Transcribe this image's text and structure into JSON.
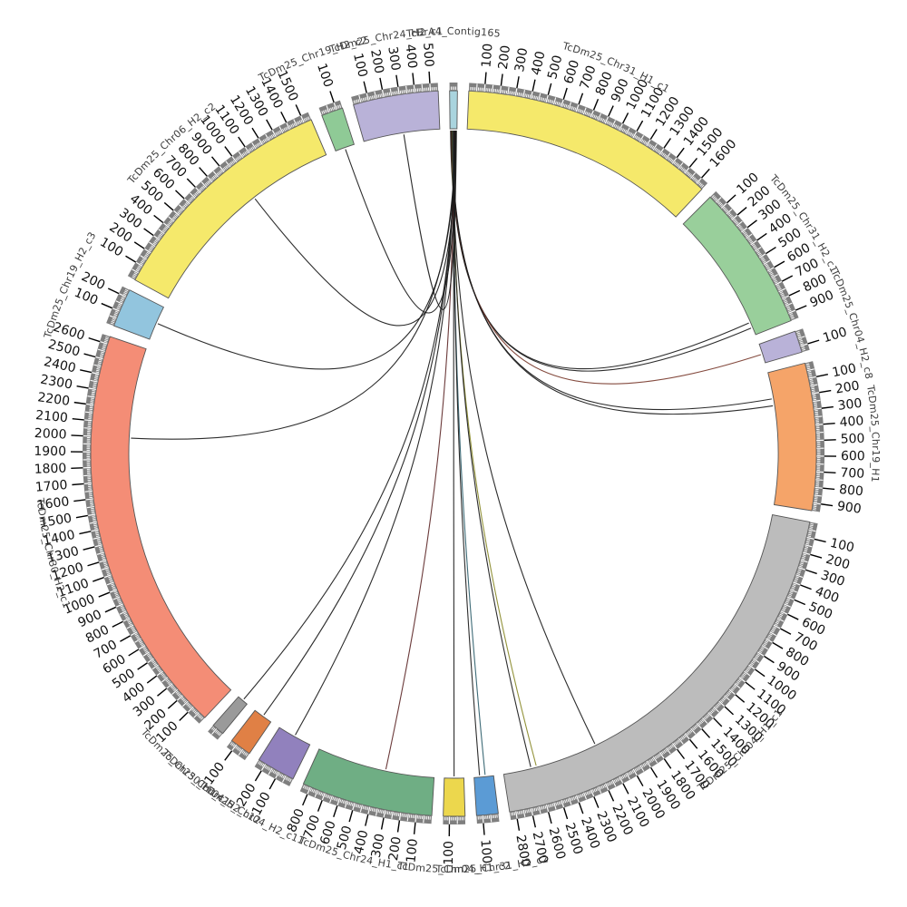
{
  "figure": {
    "kind": "circos-synteny-plot",
    "background": "#ffffff"
  },
  "chart_data": {
    "type": "circos",
    "source_segment": "TcBrA4_Contig165",
    "tick_major_interval": 100,
    "tick_minor_interval": 10,
    "segments": [
      {
        "name": "TcBrA4_Contig165",
        "size": 50,
        "color": "#a9d4de"
      },
      {
        "name": "TcDm25_Chr31_H1_c1",
        "size": 1650,
        "color": "#f5e96b"
      },
      {
        "name": "TcDm25_Chr31_H2_c1",
        "size": 950,
        "color": "#99cf9b"
      },
      {
        "name": "TcDm25_Chr04_H2_c8",
        "size": 140,
        "color": "#b9b2d8"
      },
      {
        "name": "TcDm25_Chr19_H1",
        "size": 950,
        "color": "#f5a469"
      },
      {
        "name": "TcDm25_Chr04_H1_c1",
        "size": 2840,
        "color": "#bcbcbc"
      },
      {
        "name": "TcDm25_Chr31_H2_c2",
        "size": 140,
        "color": "#5b9bd5"
      },
      {
        "name": "TcDm25_Chr04_H1_c2",
        "size": 140,
        "color": "#ecd74d"
      },
      {
        "name": "TcDm25_Chr24_H1_c1",
        "size": 850,
        "color": "#6fae84"
      },
      {
        "name": "TcDm25_Chr04_H2_c11",
        "size": 250,
        "color": "#9181bd"
      },
      {
        "name": "TcDm25_Chr04_H2_c12",
        "size": 140,
        "color": "#e08045"
      },
      {
        "name": "TcDm25_Chr30_H1_c1",
        "size": 80,
        "color": "#9a9a9a"
      },
      {
        "name": "TcDm25_Chr30_H2_c1",
        "size": 2650,
        "color": "#f48d76"
      },
      {
        "name": "TcDm25_Chr19_H2_c3",
        "size": 250,
        "color": "#92c5de"
      },
      {
        "name": "TcDm25_Chr06_H2_c2",
        "size": 1550,
        "color": "#f5e96b"
      },
      {
        "name": "TcDm25_Chr19_H2_c2",
        "size": 140,
        "color": "#8fca96"
      },
      {
        "name": "TcDm25_Chr24_H2_c1",
        "size": 550,
        "color": "#b9b2d8"
      }
    ],
    "chords": [
      {
        "target": "TcDm25_Chr31_H2_c1",
        "pos": 855,
        "color": "#1a1a1a"
      },
      {
        "target": "TcDm25_Chr31_H2_c1",
        "pos": 895,
        "color": "#1a1a1a"
      },
      {
        "target": "TcDm25_Chr04_H2_c8",
        "pos": 75,
        "color": "#7a3b2e"
      },
      {
        "target": "TcDm25_Chr19_H1",
        "pos": 190,
        "color": "#1a1a1a"
      },
      {
        "target": "TcDm25_Chr19_H1",
        "pos": 240,
        "color": "#1a1a1a"
      },
      {
        "target": "TcDm25_Chr04_H1_c1",
        "pos": 2150,
        "color": "#1a1a1a"
      },
      {
        "target": "TcDm25_Chr04_H1_c1",
        "pos": 2600,
        "color": "#8a8a2a"
      },
      {
        "target": "TcDm25_Chr04_H1_c1",
        "pos": 2640,
        "color": "#1a1a1a"
      },
      {
        "target": "TcDm25_Chr31_H2_c2",
        "pos": 60,
        "color": "#2e5e6b"
      },
      {
        "target": "TcDm25_Chr31_H2_c2",
        "pos": 100,
        "color": "#1a1a1a"
      },
      {
        "target": "TcDm25_Chr04_H1_c2",
        "pos": 70,
        "color": "#1a1a1a"
      },
      {
        "target": "TcDm25_Chr24_H1_c1",
        "pos": 350,
        "color": "#5e2929"
      },
      {
        "target": "TcDm25_Chr04_H2_c11",
        "pos": 125,
        "color": "#1a1a1a"
      },
      {
        "target": "TcDm25_Chr04_H2_c12",
        "pos": 70,
        "color": "#1a1a1a"
      },
      {
        "target": "TcDm25_Chr30_H1_c1",
        "pos": 40,
        "color": "#1a1a1a"
      },
      {
        "target": "TcDm25_Chr30_H2_c1",
        "pos": 2000,
        "color": "#1a1a1a"
      },
      {
        "target": "TcDm25_Chr19_H2_c3",
        "pos": 125,
        "color": "#1a1a1a"
      },
      {
        "target": "TcDm25_Chr06_H2_c2",
        "pos": 950,
        "color": "#1a1a1a"
      },
      {
        "target": "TcDm25_Chr19_H2_c2",
        "pos": 70,
        "color": "#1a1a1a"
      },
      {
        "target": "TcDm25_Chr24_H2_c1",
        "pos": 290,
        "color": "#1a1a1a"
      }
    ],
    "layout": {
      "gap_deg": 1.8,
      "center": [
        500,
        500
      ],
      "radius_inner": 358,
      "radius_outer": 400,
      "tick_band_outer": 409,
      "tick_len": 13,
      "tick_label_radius": 427,
      "name_radius": 462,
      "chord_attach_radius": 356,
      "tick_label_color": "#111111",
      "name_color": "#3d3d3d",
      "band_color": "#7f7f7f",
      "outline_color": "#555555",
      "grid": false,
      "legend": "none"
    }
  }
}
